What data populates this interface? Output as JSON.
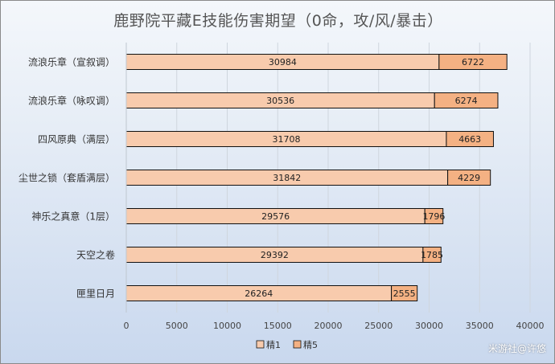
{
  "chart_data": {
    "type": "bar",
    "orientation": "horizontal",
    "stacked": true,
    "title": "鹿野院平藏E技能伤害期望（0命，攻/风/暴击）",
    "categories": [
      "流浪乐章（宣叙调）",
      "流浪乐章（咏叹调）",
      "四风原典（满层）",
      "尘世之锁（套盾满层）",
      "神乐之真意（1层）",
      "天空之卷",
      "匣里日月"
    ],
    "series": [
      {
        "name": "精1",
        "color": "#f8cbad",
        "values": [
          30984,
          30536,
          31708,
          31842,
          29576,
          29392,
          26264
        ]
      },
      {
        "name": "精5",
        "color": "#f4b183",
        "values": [
          6722,
          6274,
          4663,
          4229,
          1796,
          1785,
          2555
        ]
      }
    ],
    "xlim": [
      0,
      40000
    ],
    "xticks": [
      "0",
      "5000",
      "10000",
      "15000",
      "20000",
      "25000",
      "30000",
      "35000",
      "40000"
    ],
    "grid": "vertical",
    "legend": "bottom"
  },
  "watermark": "米游社@许悠"
}
